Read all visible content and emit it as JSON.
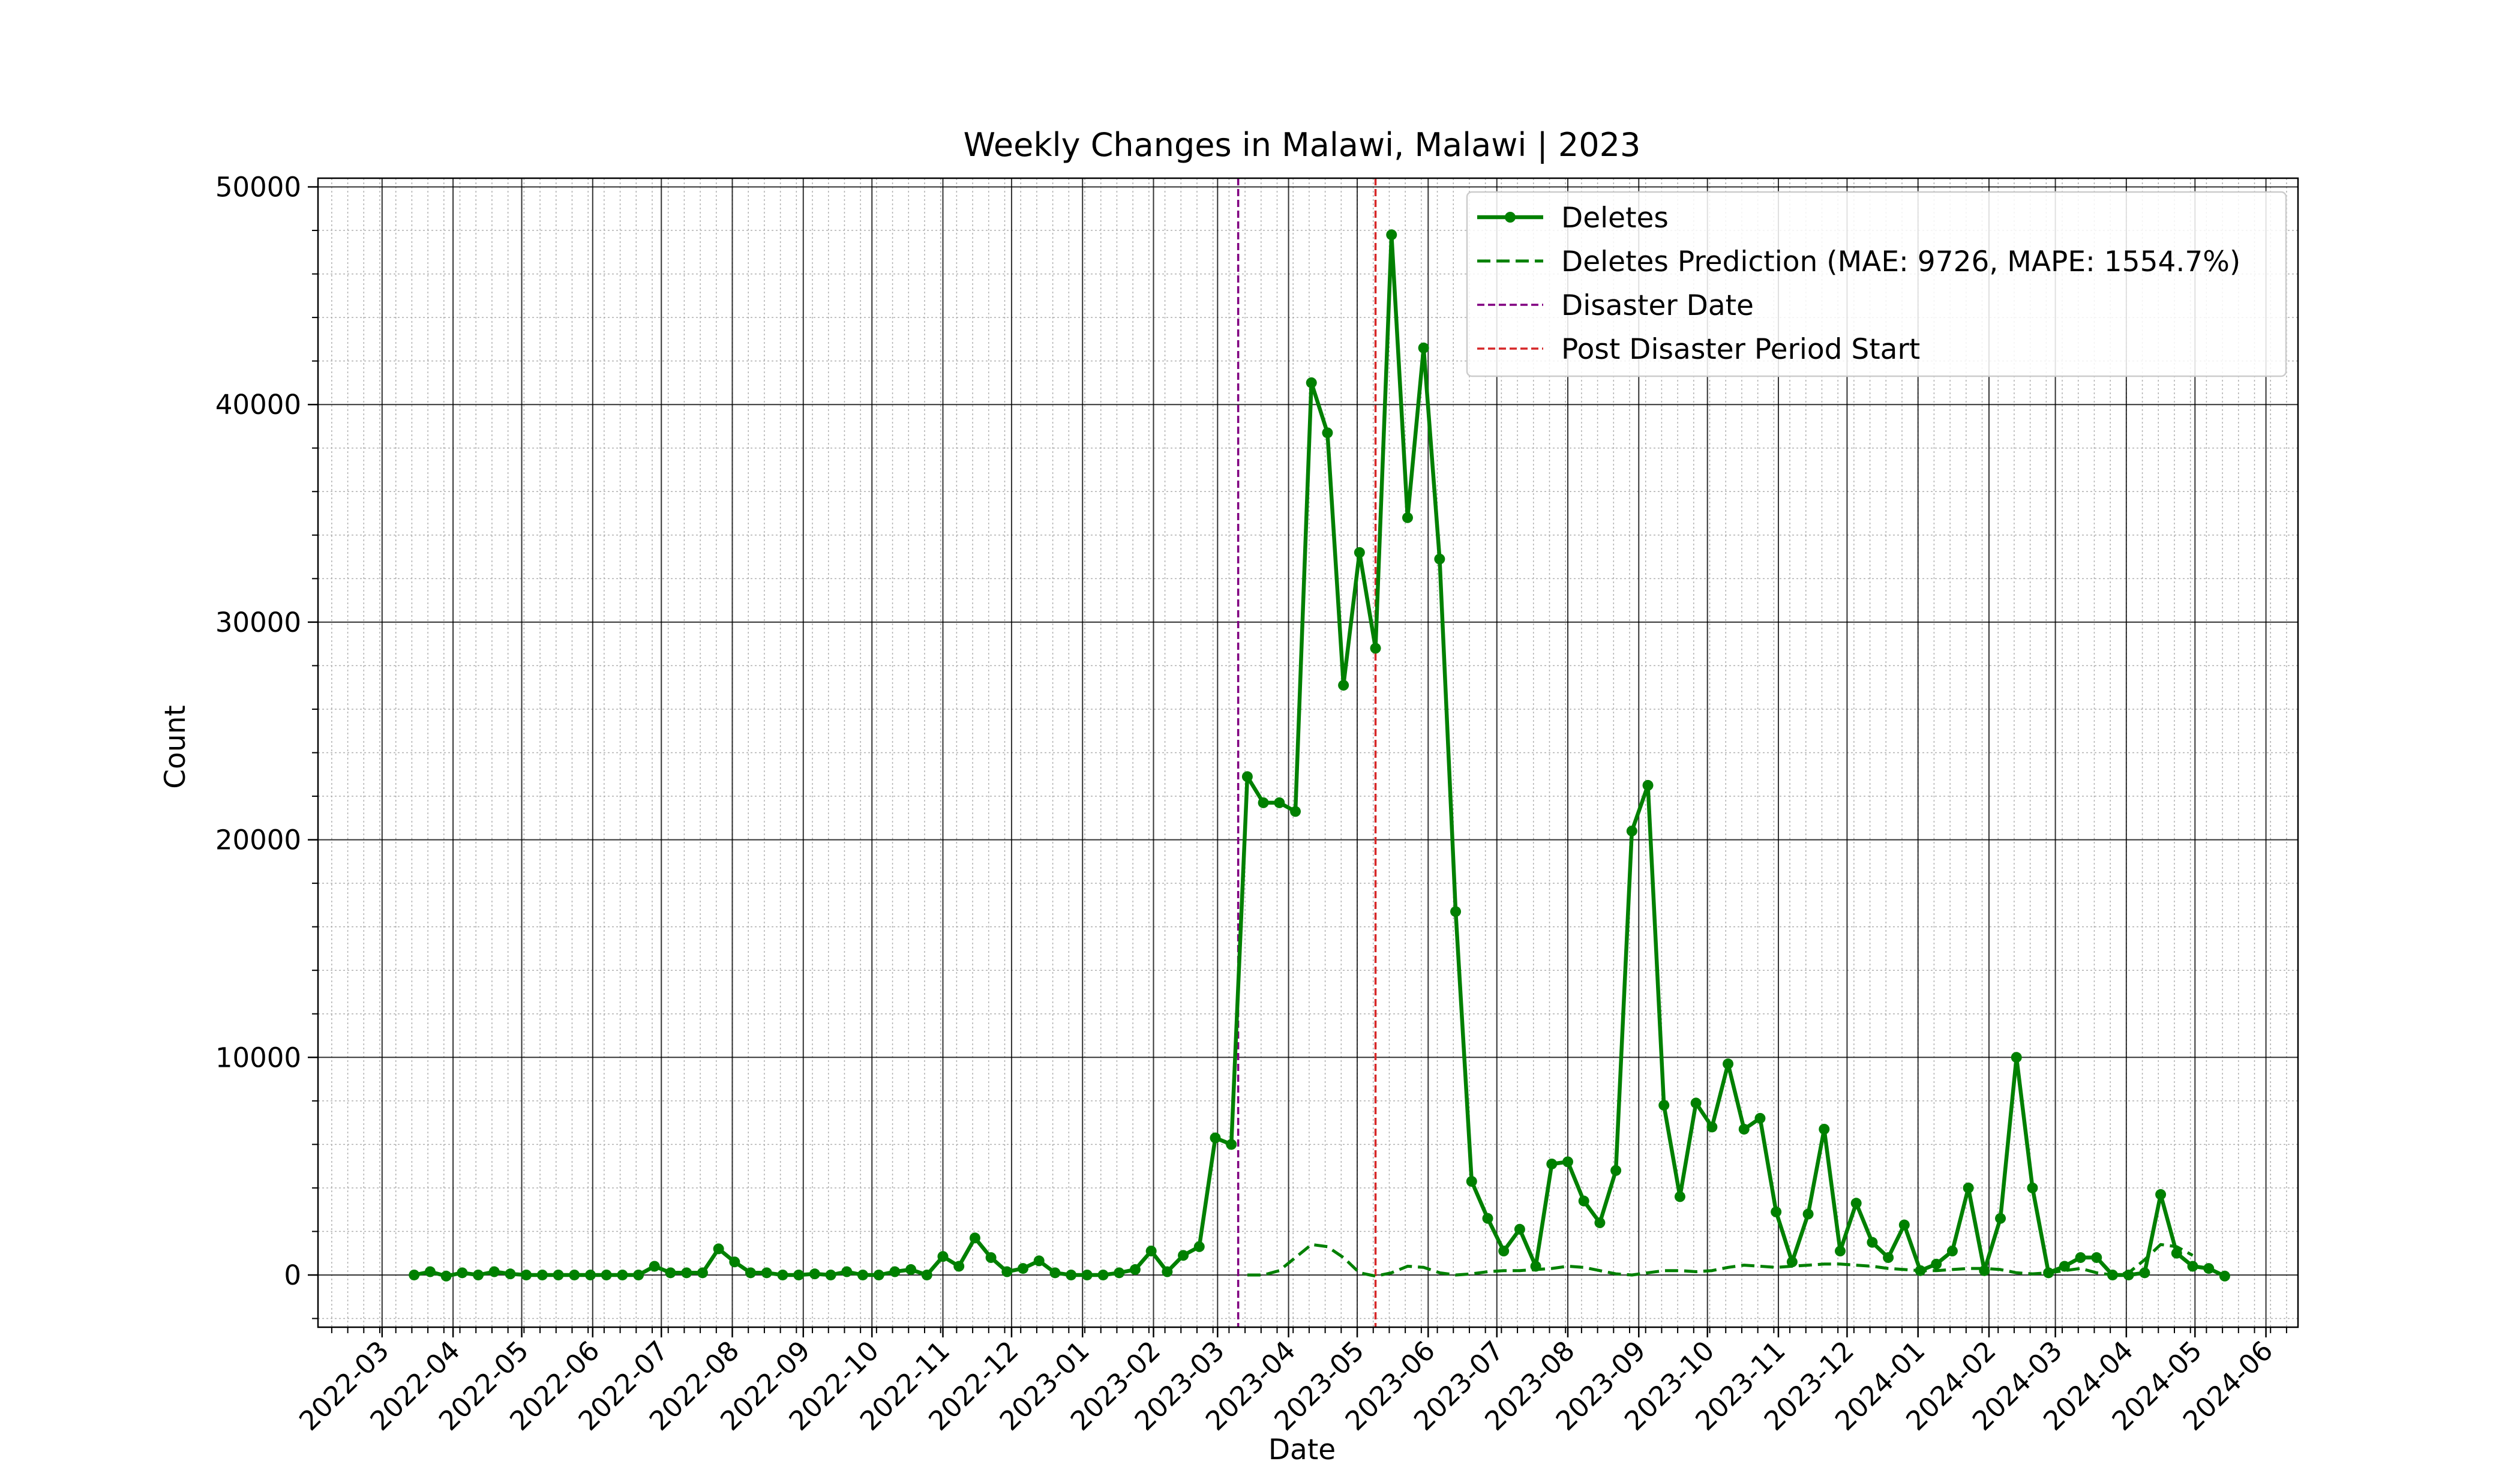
{
  "chart_data": {
    "type": "line",
    "title": "Weekly Changes in Malawi, Malawi | 2023",
    "xlabel": "Date",
    "ylabel": "Count",
    "ylim": [
      -2400,
      50400
    ],
    "xlim": [
      "2022-02-01",
      "2024-06-15"
    ],
    "y_ticks": [
      0,
      10000,
      20000,
      30000,
      40000,
      50000
    ],
    "x_ticks": [
      "2022-03",
      "2022-04",
      "2022-05",
      "2022-06",
      "2022-07",
      "2022-08",
      "2022-09",
      "2022-10",
      "2022-11",
      "2022-12",
      "2023-01",
      "2023-02",
      "2023-03",
      "2023-04",
      "2023-05",
      "2023-06",
      "2023-07",
      "2023-08",
      "2023-09",
      "2023-10",
      "2023-11",
      "2023-12",
      "2024-01",
      "2024-02",
      "2024-03",
      "2024-04",
      "2024-05",
      "2024-06"
    ],
    "grid": true,
    "legend_position": "top-right",
    "series": [
      {
        "name": "Deletes",
        "color": "#008000",
        "style": "solid-with-markers",
        "x": [
          "2022-03-15",
          "2022-03-22",
          "2022-03-29",
          "2022-04-05",
          "2022-04-12",
          "2022-04-19",
          "2022-04-26",
          "2022-05-03",
          "2022-05-10",
          "2022-05-17",
          "2022-05-24",
          "2022-05-31",
          "2022-06-07",
          "2022-06-14",
          "2022-06-21",
          "2022-06-28",
          "2022-07-05",
          "2022-07-12",
          "2022-07-19",
          "2022-07-26",
          "2022-08-02",
          "2022-08-09",
          "2022-08-16",
          "2022-08-23",
          "2022-08-30",
          "2022-09-06",
          "2022-09-13",
          "2022-09-20",
          "2022-09-27",
          "2022-10-04",
          "2022-10-11",
          "2022-10-18",
          "2022-10-25",
          "2022-11-01",
          "2022-11-08",
          "2022-11-15",
          "2022-11-22",
          "2022-11-29",
          "2022-12-06",
          "2022-12-13",
          "2022-12-20",
          "2022-12-27",
          "2023-01-03",
          "2023-01-10",
          "2023-01-17",
          "2023-01-24",
          "2023-01-31",
          "2023-02-07",
          "2023-02-14",
          "2023-02-21",
          "2023-02-28",
          "2023-03-07",
          "2023-03-14",
          "2023-03-21",
          "2023-03-28",
          "2023-04-04",
          "2023-04-11",
          "2023-04-18",
          "2023-04-25",
          "2023-05-02",
          "2023-05-09",
          "2023-05-16",
          "2023-05-23",
          "2023-05-30",
          "2023-06-06",
          "2023-06-13",
          "2023-06-20",
          "2023-06-27",
          "2023-07-04",
          "2023-07-11",
          "2023-07-18",
          "2023-07-25",
          "2023-08-01",
          "2023-08-08",
          "2023-08-15",
          "2023-08-22",
          "2023-08-29",
          "2023-09-05",
          "2023-09-12",
          "2023-09-19",
          "2023-09-26",
          "2023-10-03",
          "2023-10-10",
          "2023-10-17",
          "2023-10-24",
          "2023-10-31",
          "2023-11-07",
          "2023-11-14",
          "2023-11-21",
          "2023-11-28",
          "2023-12-05",
          "2023-12-12",
          "2023-12-19",
          "2023-12-26",
          "2024-01-02",
          "2024-01-09",
          "2024-01-16",
          "2024-01-23",
          "2024-01-30",
          "2024-02-06",
          "2024-02-13",
          "2024-02-20",
          "2024-02-27",
          "2024-03-05",
          "2024-03-12",
          "2024-03-19",
          "2024-03-26",
          "2024-04-02",
          "2024-04-09",
          "2024-04-16",
          "2024-04-23",
          "2024-04-30",
          "2024-05-07",
          "2024-05-14"
        ],
        "y": [
          0,
          150,
          -50,
          100,
          0,
          150,
          50,
          0,
          0,
          0,
          0,
          0,
          0,
          0,
          0,
          400,
          100,
          100,
          100,
          1200,
          600,
          100,
          100,
          0,
          0,
          50,
          0,
          150,
          0,
          0,
          150,
          250,
          0,
          850,
          400,
          1700,
          800,
          150,
          300,
          650,
          100,
          0,
          0,
          0,
          100,
          250,
          1100,
          150,
          900,
          1300,
          6300,
          6000,
          22900,
          21700,
          21700,
          21300,
          41000,
          38700,
          27100,
          33200,
          28800,
          47800,
          34800,
          42600,
          32900,
          16700,
          4300,
          2600,
          1100,
          2100,
          400,
          5100,
          5200,
          3400,
          2400,
          4800,
          20400,
          22500,
          7800,
          3600,
          7900,
          6800,
          9700,
          6700,
          7200,
          2900,
          600,
          2800,
          6700,
          1100,
          3300,
          1500,
          800,
          2300,
          200,
          500,
          1100,
          4000,
          200,
          2600,
          10000,
          4000,
          100,
          400,
          800,
          800,
          0,
          0,
          100,
          3700,
          1000,
          400,
          300,
          -50
        ]
      },
      {
        "name": "Deletes Prediction (MAE: 9726, MAPE: 1554.7%)",
        "color": "#008000",
        "style": "dashed",
        "x": [
          "2023-03-14",
          "2023-03-21",
          "2023-03-28",
          "2023-04-04",
          "2023-04-11",
          "2023-04-18",
          "2023-04-25",
          "2023-05-02",
          "2023-05-09",
          "2023-05-16",
          "2023-05-23",
          "2023-05-30",
          "2023-06-06",
          "2023-06-13",
          "2023-06-20",
          "2023-06-27",
          "2023-07-04",
          "2023-07-11",
          "2023-07-18",
          "2023-07-25",
          "2023-08-01",
          "2023-08-08",
          "2023-08-15",
          "2023-08-22",
          "2023-08-29",
          "2023-09-05",
          "2023-09-12",
          "2023-09-19",
          "2023-09-26",
          "2023-10-03",
          "2023-10-10",
          "2023-10-17",
          "2023-10-24",
          "2023-10-31",
          "2023-11-07",
          "2023-11-14",
          "2023-11-21",
          "2023-11-28",
          "2023-12-05",
          "2023-12-12",
          "2023-12-19",
          "2023-12-26",
          "2024-01-02",
          "2024-01-09",
          "2024-01-16",
          "2024-01-23",
          "2024-01-30",
          "2024-02-06",
          "2024-02-13",
          "2024-02-20",
          "2024-02-27",
          "2024-03-05",
          "2024-03-12",
          "2024-03-19",
          "2024-03-26",
          "2024-04-02",
          "2024-04-09",
          "2024-04-16",
          "2024-04-23",
          "2024-04-30"
        ],
        "y": [
          0,
          0,
          200,
          800,
          1400,
          1300,
          800,
          100,
          -50,
          100,
          400,
          350,
          100,
          0,
          50,
          150,
          200,
          200,
          250,
          300,
          400,
          350,
          200,
          50,
          0,
          100,
          200,
          200,
          150,
          200,
          350,
          450,
          400,
          350,
          400,
          450,
          500,
          500,
          450,
          400,
          300,
          250,
          200,
          200,
          250,
          300,
          300,
          250,
          100,
          50,
          100,
          200,
          300,
          100,
          0,
          100,
          700,
          1400,
          1300,
          900
        ]
      }
    ],
    "vlines": [
      {
        "name": "Disaster Date",
        "x": "2023-03-10",
        "color": "#800080"
      },
      {
        "name": "Post Disaster Period Start",
        "x": "2023-05-09",
        "color": "#d62728"
      }
    ]
  }
}
